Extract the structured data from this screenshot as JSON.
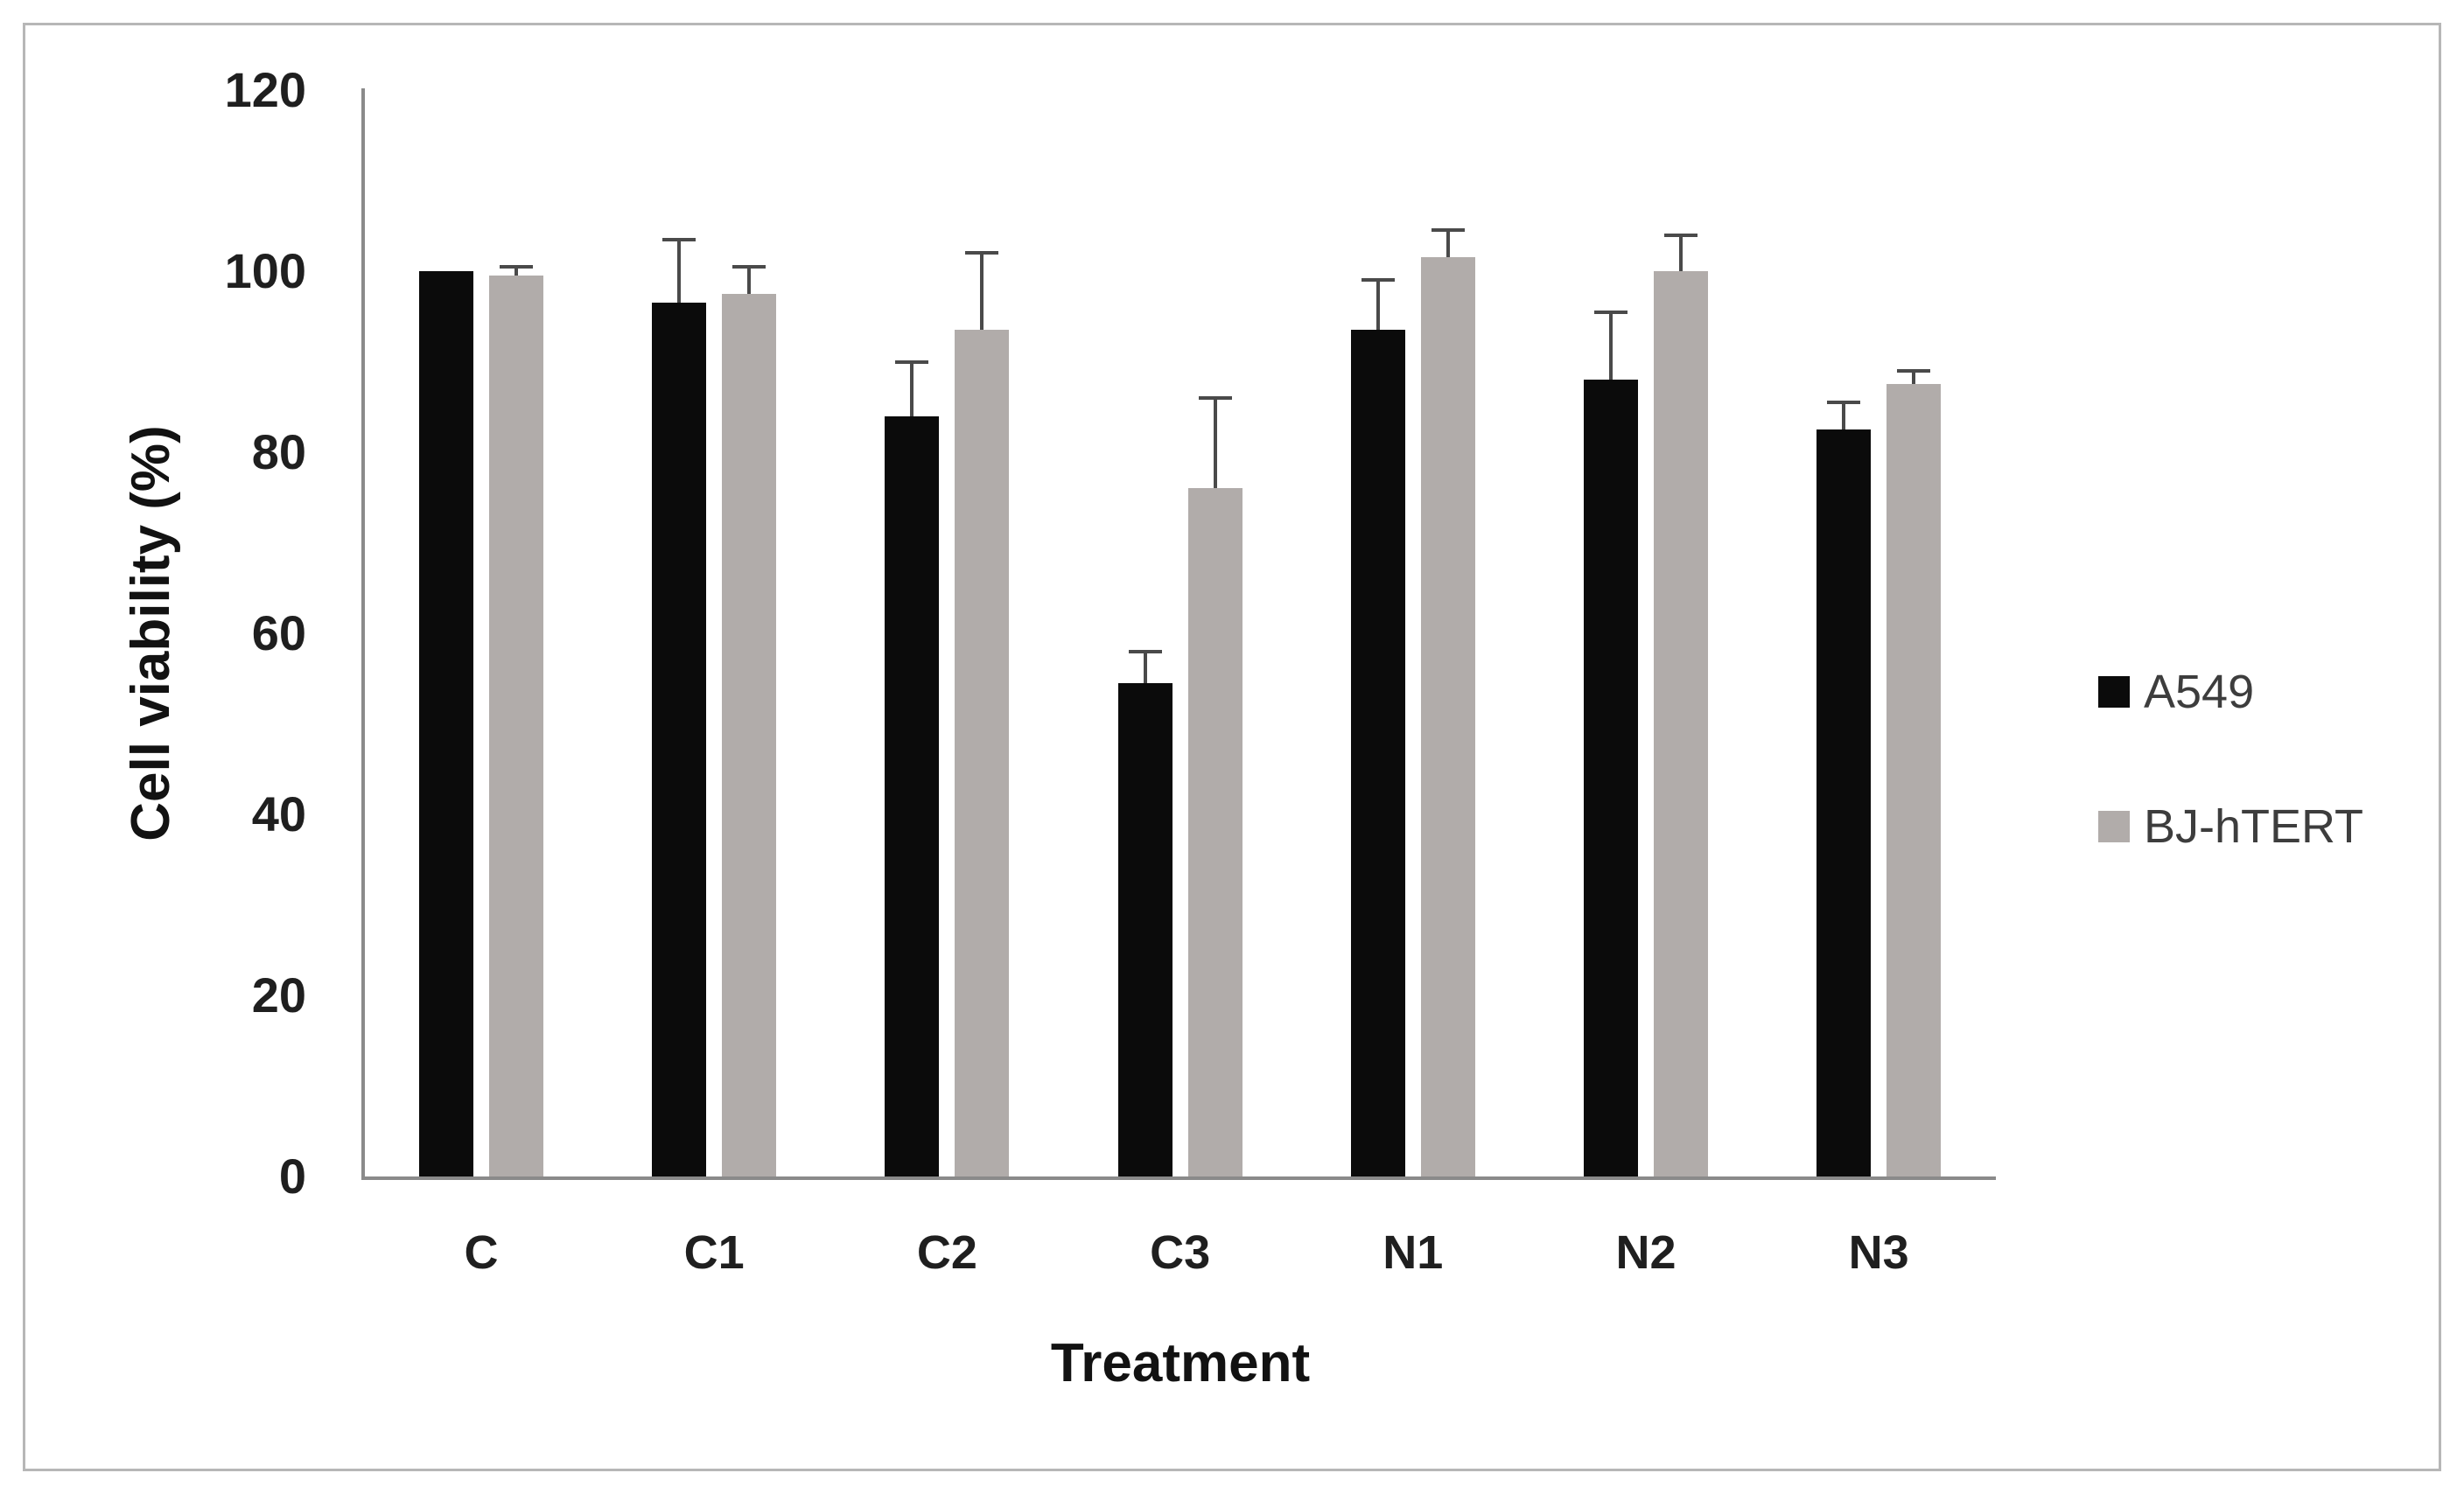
{
  "figure": {
    "background_color": "#ffffff",
    "border_color": "#b7b7b7"
  },
  "chart_data": {
    "type": "bar",
    "title": "",
    "xlabel": "Treatment",
    "ylabel": "Cell viability (%)",
    "categories": [
      "C",
      "C1",
      "C2",
      "C3",
      "N1",
      "N2",
      "N3"
    ],
    "series": [
      {
        "name": "A549",
        "color": "#0b0b0b",
        "values": [
          100,
          96.5,
          84,
          54.5,
          93.5,
          88,
          82.5
        ],
        "errors_plus": [
          0,
          7,
          6,
          3.5,
          5.5,
          7.5,
          3
        ]
      },
      {
        "name": "BJ-hTERT",
        "color": "#b1acaa",
        "values": [
          99.5,
          97.5,
          93.5,
          76,
          101.5,
          100,
          87.5
        ],
        "errors_plus": [
          1,
          3,
          8.5,
          10,
          3,
          4,
          1.5
        ]
      }
    ],
    "ylim": [
      0,
      120
    ],
    "yticks": [
      0,
      20,
      40,
      60,
      80,
      100,
      120
    ],
    "grid": false,
    "legend_position": "right",
    "error_bar_color": "#4a4a4a",
    "axis_line_color": "#8a8a8a"
  }
}
